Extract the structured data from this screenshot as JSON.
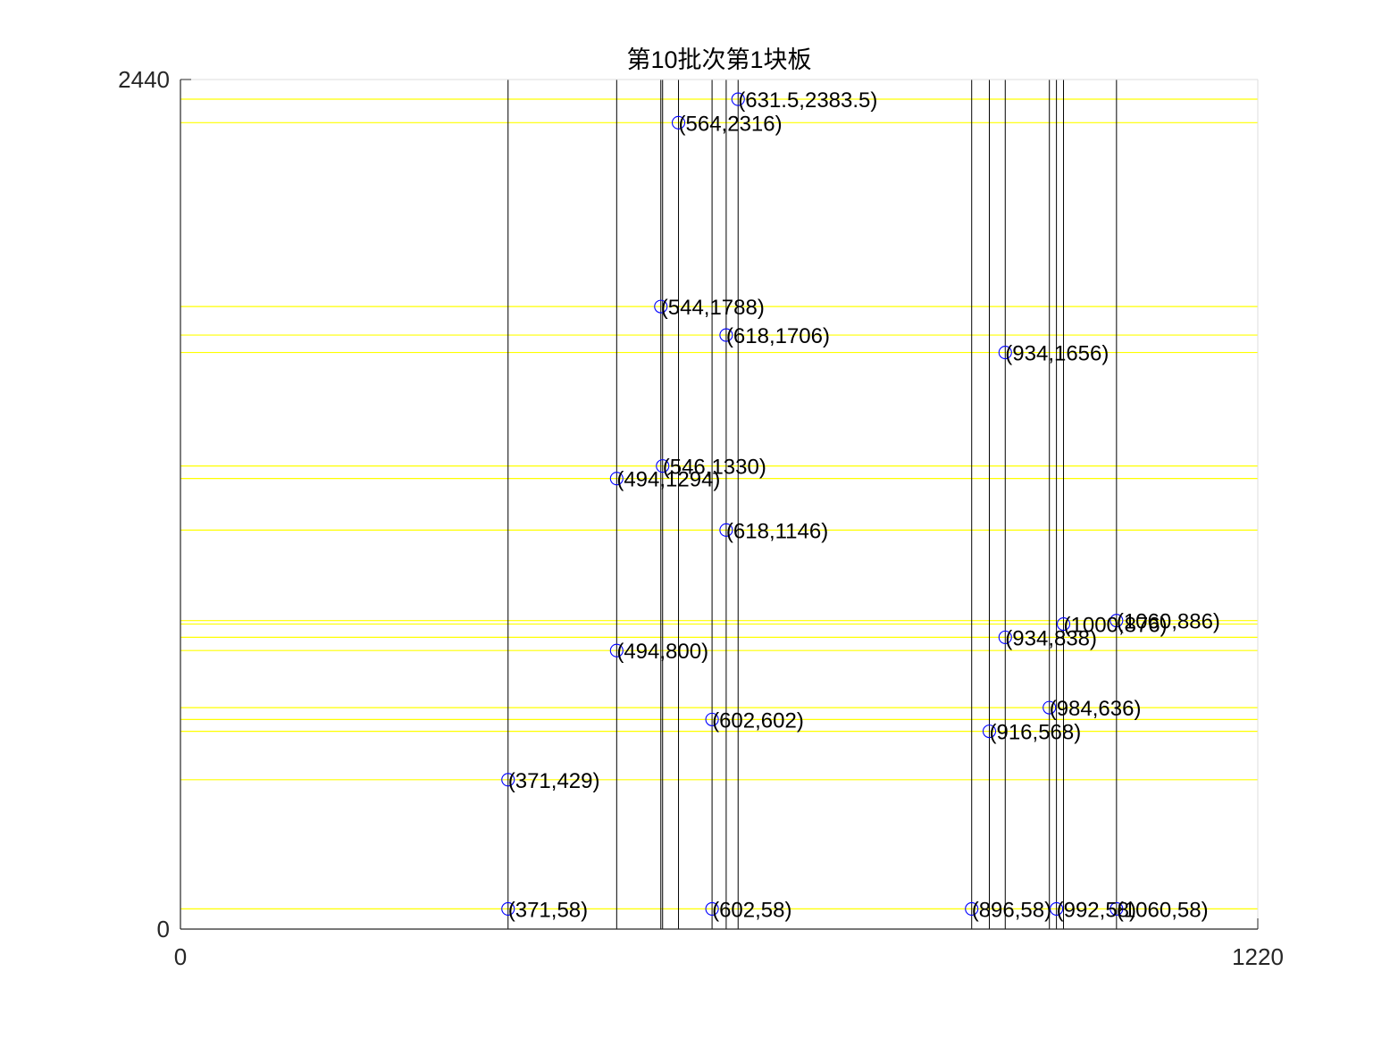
{
  "chart_data": {
    "type": "scatter",
    "title": "第10批次第1块板",
    "xlabel": "",
    "ylabel": "",
    "xlim": [
      0,
      1220
    ],
    "ylim": [
      0,
      2440
    ],
    "x_ticks": [
      "0",
      "1220"
    ],
    "y_ticks": [
      "0",
      "2440"
    ],
    "grid": false,
    "colors": {
      "hline": "#ffff00",
      "vline": "#000000",
      "marker": "#0000ff",
      "label": "#000000",
      "axis": "#262626",
      "box": "#dddddd"
    },
    "vertical_lines": [
      371,
      494,
      544,
      546,
      564,
      602,
      618,
      631.5,
      896,
      916,
      934,
      984,
      992,
      1000,
      1060
    ],
    "horizontal_lines": [
      58,
      429,
      568,
      602,
      636,
      800,
      838,
      876,
      886,
      1146,
      1294,
      1330,
      1656,
      1706,
      1788,
      2316,
      2383.5
    ],
    "points": [
      {
        "x": 631.5,
        "y": 2383.5,
        "label": "(631.5,2383.5)"
      },
      {
        "x": 564,
        "y": 2316,
        "label": "(564,2316)"
      },
      {
        "x": 544,
        "y": 1788,
        "label": "(544,1788)"
      },
      {
        "x": 618,
        "y": 1706,
        "label": "(618,1706)"
      },
      {
        "x": 934,
        "y": 1656,
        "label": "(934,1656)"
      },
      {
        "x": 546,
        "y": 1330,
        "label": "(546,1330)"
      },
      {
        "x": 494,
        "y": 1294,
        "label": "(494,1294)"
      },
      {
        "x": 618,
        "y": 1146,
        "label": "(618,1146)"
      },
      {
        "x": 1060,
        "y": 886,
        "label": "(1060,886)"
      },
      {
        "x": 1000,
        "y": 876,
        "label": "(1000,876)"
      },
      {
        "x": 934,
        "y": 838,
        "label": "(934,838)"
      },
      {
        "x": 494,
        "y": 800,
        "label": "(494,800)"
      },
      {
        "x": 984,
        "y": 636,
        "label": "(984,636)"
      },
      {
        "x": 602,
        "y": 602,
        "label": "(602,602)"
      },
      {
        "x": 916,
        "y": 568,
        "label": "(916,568)"
      },
      {
        "x": 371,
        "y": 429,
        "label": "(371,429)"
      },
      {
        "x": 371,
        "y": 58,
        "label": "(371,58)"
      },
      {
        "x": 602,
        "y": 58,
        "label": "(602,58)"
      },
      {
        "x": 896,
        "y": 58,
        "label": "(896,58)"
      },
      {
        "x": 992,
        "y": 58,
        "label": "(992,58)"
      },
      {
        "x": 1060,
        "y": 58,
        "label": "(1060,58)"
      }
    ]
  }
}
